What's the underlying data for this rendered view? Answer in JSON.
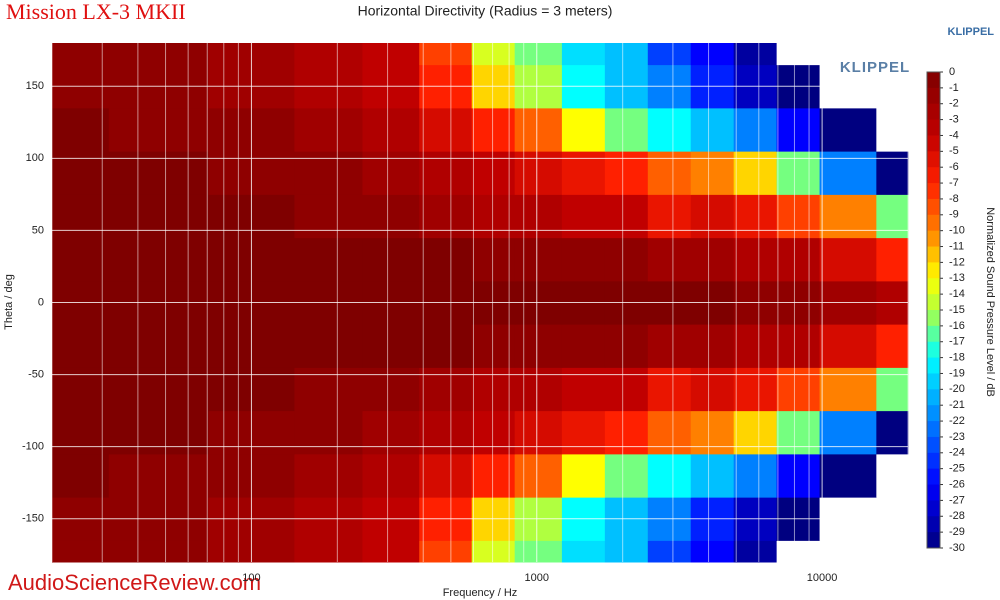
{
  "chart_data": {
    "type": "heatmap",
    "brand": "Mission LX-3 MKII",
    "title": "Horizontal Directivity (Radius = 3 meters)",
    "corner_label": "KLIPPEL",
    "logo": "KLIPPEL",
    "watermark": "AudioScienceReview.com",
    "x_label": "Frequency / Hz",
    "y_label": "Theta / deg",
    "colorbar_label": "Normalized Sound Pressure Level / dB",
    "x_log": true,
    "xlim": [
      20,
      20000
    ],
    "xticks": [
      100,
      1000,
      10000
    ],
    "xminor_ticks": [
      20,
      30,
      40,
      50,
      60,
      70,
      80,
      90,
      200,
      300,
      400,
      500,
      600,
      700,
      800,
      900,
      2000,
      3000,
      4000,
      5000,
      6000,
      7000,
      8000,
      9000,
      20000
    ],
    "ylim": [
      -180,
      180
    ],
    "yticks": [
      -150,
      -100,
      -50,
      0,
      50,
      100,
      150
    ],
    "grid": true,
    "x": [
      20,
      50,
      100,
      200,
      300,
      500,
      700,
      1000,
      1500,
      2000,
      3000,
      4000,
      6000,
      8000,
      12000,
      20000
    ],
    "y": [
      -180,
      -150,
      -120,
      -90,
      -60,
      -30,
      0,
      30,
      60,
      90,
      120,
      150,
      180
    ],
    "z": [
      [
        -1,
        -1,
        -2,
        -3,
        -4,
        -8,
        -14,
        -16,
        -19,
        -20,
        -24,
        -26,
        -29,
        -32,
        -35,
        -35
      ],
      [
        -1,
        -1,
        -2,
        -3,
        -4,
        -7,
        -12,
        -15,
        -18,
        -20,
        -22,
        -25,
        -28,
        -30,
        -33,
        -35
      ],
      [
        0,
        -1,
        -1,
        -2,
        -3,
        -5,
        -7,
        -9,
        -13,
        -16,
        -18,
        -20,
        -22,
        -26,
        -30,
        -35
      ],
      [
        0,
        0,
        -1,
        -1,
        -2,
        -3,
        -4,
        -5,
        -6,
        -7,
        -9,
        -10,
        -12,
        -16,
        -22,
        -30
      ],
      [
        0,
        0,
        0,
        -1,
        -1,
        -2,
        -3,
        -3,
        -4,
        -4,
        -6,
        -5,
        -6,
        -8,
        -10,
        -16
      ],
      [
        0,
        0,
        0,
        0,
        0,
        0,
        -1,
        -1,
        -1,
        -1,
        -2,
        -2,
        -3,
        -3,
        -5,
        -7
      ],
      [
        0,
        0,
        0,
        0,
        0,
        0,
        0,
        0,
        0,
        0,
        0,
        0,
        -1,
        -1,
        -2,
        -3
      ],
      [
        0,
        0,
        0,
        0,
        0,
        0,
        -1,
        -1,
        -1,
        -1,
        -2,
        -2,
        -3,
        -3,
        -5,
        -7
      ],
      [
        0,
        0,
        0,
        -1,
        -1,
        -2,
        -3,
        -3,
        -4,
        -4,
        -6,
        -5,
        -6,
        -8,
        -10,
        -16
      ],
      [
        0,
        0,
        -1,
        -1,
        -2,
        -3,
        -4,
        -5,
        -6,
        -7,
        -9,
        -10,
        -12,
        -16,
        -22,
        -30
      ],
      [
        0,
        -1,
        -1,
        -2,
        -3,
        -5,
        -7,
        -9,
        -13,
        -16,
        -18,
        -20,
        -22,
        -26,
        -30,
        -35
      ],
      [
        -1,
        -1,
        -2,
        -3,
        -4,
        -7,
        -12,
        -15,
        -18,
        -20,
        -22,
        -25,
        -28,
        -30,
        -33,
        -35
      ],
      [
        -1,
        -1,
        -2,
        -3,
        -4,
        -8,
        -14,
        -16,
        -19,
        -20,
        -24,
        -26,
        -29,
        -32,
        -35,
        -35
      ]
    ],
    "zlim": [
      -30,
      0
    ],
    "zticks": [
      0,
      -1,
      -2,
      -3,
      -4,
      -5,
      -6,
      -7,
      -8,
      -9,
      -10,
      -11,
      -12,
      -13,
      -14,
      -15,
      -16,
      -17,
      -18,
      -19,
      -20,
      -21,
      -22,
      -23,
      -24,
      -25,
      -26,
      -27,
      -28,
      -29,
      -30
    ],
    "colorscale": [
      [
        0,
        "#7f0000"
      ],
      [
        -4,
        "#c00000"
      ],
      [
        -7,
        "#ff2000"
      ],
      [
        -10,
        "#ff8000"
      ],
      [
        -13,
        "#ffff00"
      ],
      [
        -15,
        "#b0ff40"
      ],
      [
        -18,
        "#00ffff"
      ],
      [
        -22,
        "#0080ff"
      ],
      [
        -26,
        "#0000ff"
      ],
      [
        -30,
        "#000080"
      ]
    ],
    "below_color": "#ffffff"
  }
}
